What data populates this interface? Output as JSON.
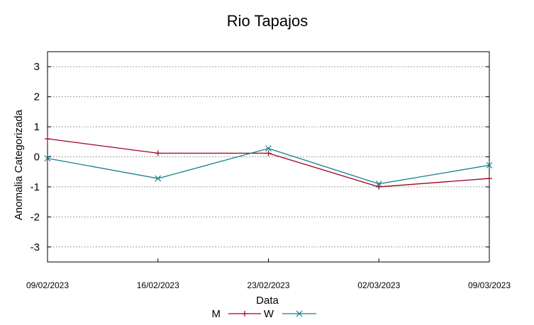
{
  "chart_data": {
    "type": "line",
    "title": "Rio Tapajos",
    "xlabel": "Data",
    "ylabel": "Anomalia Categorizada",
    "categories": [
      "09/02/2023",
      "16/02/2023",
      "23/02/2023",
      "02/03/2023",
      "09/03/2023"
    ],
    "ylim": [
      -3.5,
      3.5
    ],
    "yticks": [
      3,
      2,
      1,
      0,
      -1,
      -2,
      -3
    ],
    "grid": true,
    "legend_position": "bottom-center",
    "series": [
      {
        "name": "M",
        "color": "#a0001e",
        "marker": "plus",
        "values": [
          0.6,
          0.12,
          0.12,
          -1.0,
          -0.72
        ]
      },
      {
        "name": "W",
        "color": "#14808a",
        "marker": "x",
        "values": [
          -0.05,
          -0.72,
          0.28,
          -0.9,
          -0.28
        ]
      }
    ]
  }
}
